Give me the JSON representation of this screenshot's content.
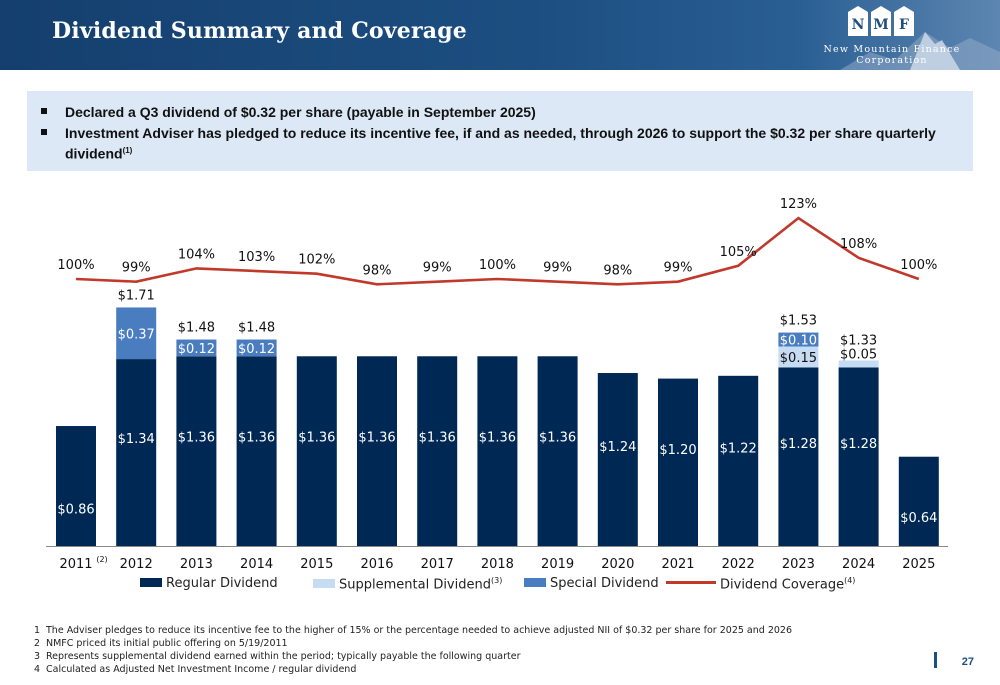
{
  "header": {
    "title": "Dividend Summary and Coverage",
    "logo_letters": [
      "N",
      "M",
      "F"
    ],
    "logo_line1": "New Mountain Finance",
    "logo_line2": "Corporation"
  },
  "bullets": [
    {
      "text": "Declared a Q3 dividend of $0.32 per share (payable in September 2025)",
      "sup": ""
    },
    {
      "text": "Investment Adviser has pledged to reduce its incentive fee, if and as needed, through 2026 to support the $0.32 per share quarterly dividend",
      "sup": "(1)"
    }
  ],
  "chart_data": {
    "type": "bar",
    "stacked": true,
    "categories": [
      "2011",
      "2012",
      "2013",
      "2014",
      "2015",
      "2016",
      "2017",
      "2018",
      "2019",
      "2020",
      "2021",
      "2022",
      "2023",
      "2024",
      "2025"
    ],
    "category_superscripts": [
      "(2)",
      "",
      "",
      "",
      "",
      "",
      "",
      "",
      "",
      "",
      "",
      "",
      "",
      "",
      ""
    ],
    "series": [
      {
        "name": "Regular Dividend",
        "sup": "",
        "color": "#002855",
        "values": [
          0.86,
          1.34,
          1.36,
          1.36,
          1.36,
          1.36,
          1.36,
          1.36,
          1.36,
          1.24,
          1.2,
          1.22,
          1.28,
          1.28,
          0.64
        ],
        "labels": [
          "$0.86",
          "$1.34",
          "$1.36",
          "$1.36",
          "$1.36",
          "$1.36",
          "$1.36",
          "$1.36",
          "$1.36",
          "$1.24",
          "$1.20",
          "$1.22",
          "$1.28",
          "$1.28",
          "$0.64"
        ]
      },
      {
        "name": "Supplemental Dividend",
        "sup": "(3)",
        "color": "#c6dcf2",
        "values": [
          0,
          0,
          0,
          0,
          0,
          0,
          0,
          0,
          0,
          0,
          0,
          0,
          0.15,
          0.05,
          0
        ],
        "labels": [
          "",
          "",
          "",
          "",
          "",
          "",
          "",
          "",
          "",
          "",
          "",
          "",
          "$0.15",
          "$0.05",
          ""
        ]
      },
      {
        "name": "Special Dividend",
        "sup": "",
        "color": "#4a7dc0",
        "values": [
          0,
          0.37,
          0.12,
          0.12,
          0,
          0,
          0,
          0,
          0,
          0,
          0,
          0,
          0.1,
          0,
          0
        ],
        "labels": [
          "",
          "$0.37",
          "$0.12",
          "$0.12",
          "",
          "",
          "",
          "",
          "",
          "",
          "",
          "",
          "$0.10",
          "",
          ""
        ]
      }
    ],
    "totals": [
      "",
      "$1.71",
      "$1.48",
      "$1.48",
      "",
      "",
      "",
      "",
      "",
      "",
      "",
      "",
      "$1.53",
      "$1.33",
      ""
    ],
    "coverage": {
      "name": "Dividend Coverage",
      "sup": "(4)",
      "color": "#c0392b",
      "values": [
        100,
        99,
        104,
        103,
        102,
        98,
        99,
        100,
        99,
        98,
        99,
        105,
        123,
        108,
        100
      ],
      "labels": [
        "100%",
        "99%",
        "104%",
        "103%",
        "102%",
        "98%",
        "99%",
        "100%",
        "99%",
        "98%",
        "99%",
        "105%",
        "123%",
        "108%",
        "100%"
      ]
    }
  },
  "footnotes": [
    {
      "num": "1",
      "text": "The Adviser pledges to reduce its incentive fee to the higher of 15% or the percentage needed to achieve adjusted NII of $0.32 per share for 2025 and 2026"
    },
    {
      "num": "2",
      "text": "NMFC priced its initial public offering on 5/19/2011"
    },
    {
      "num": "3",
      "text": "Represents supplemental dividend earned within the period; typically payable the following quarter"
    },
    {
      "num": "4",
      "text": "Calculated as Adjusted Net Investment Income / regular dividend"
    }
  ],
  "page_number": "27"
}
